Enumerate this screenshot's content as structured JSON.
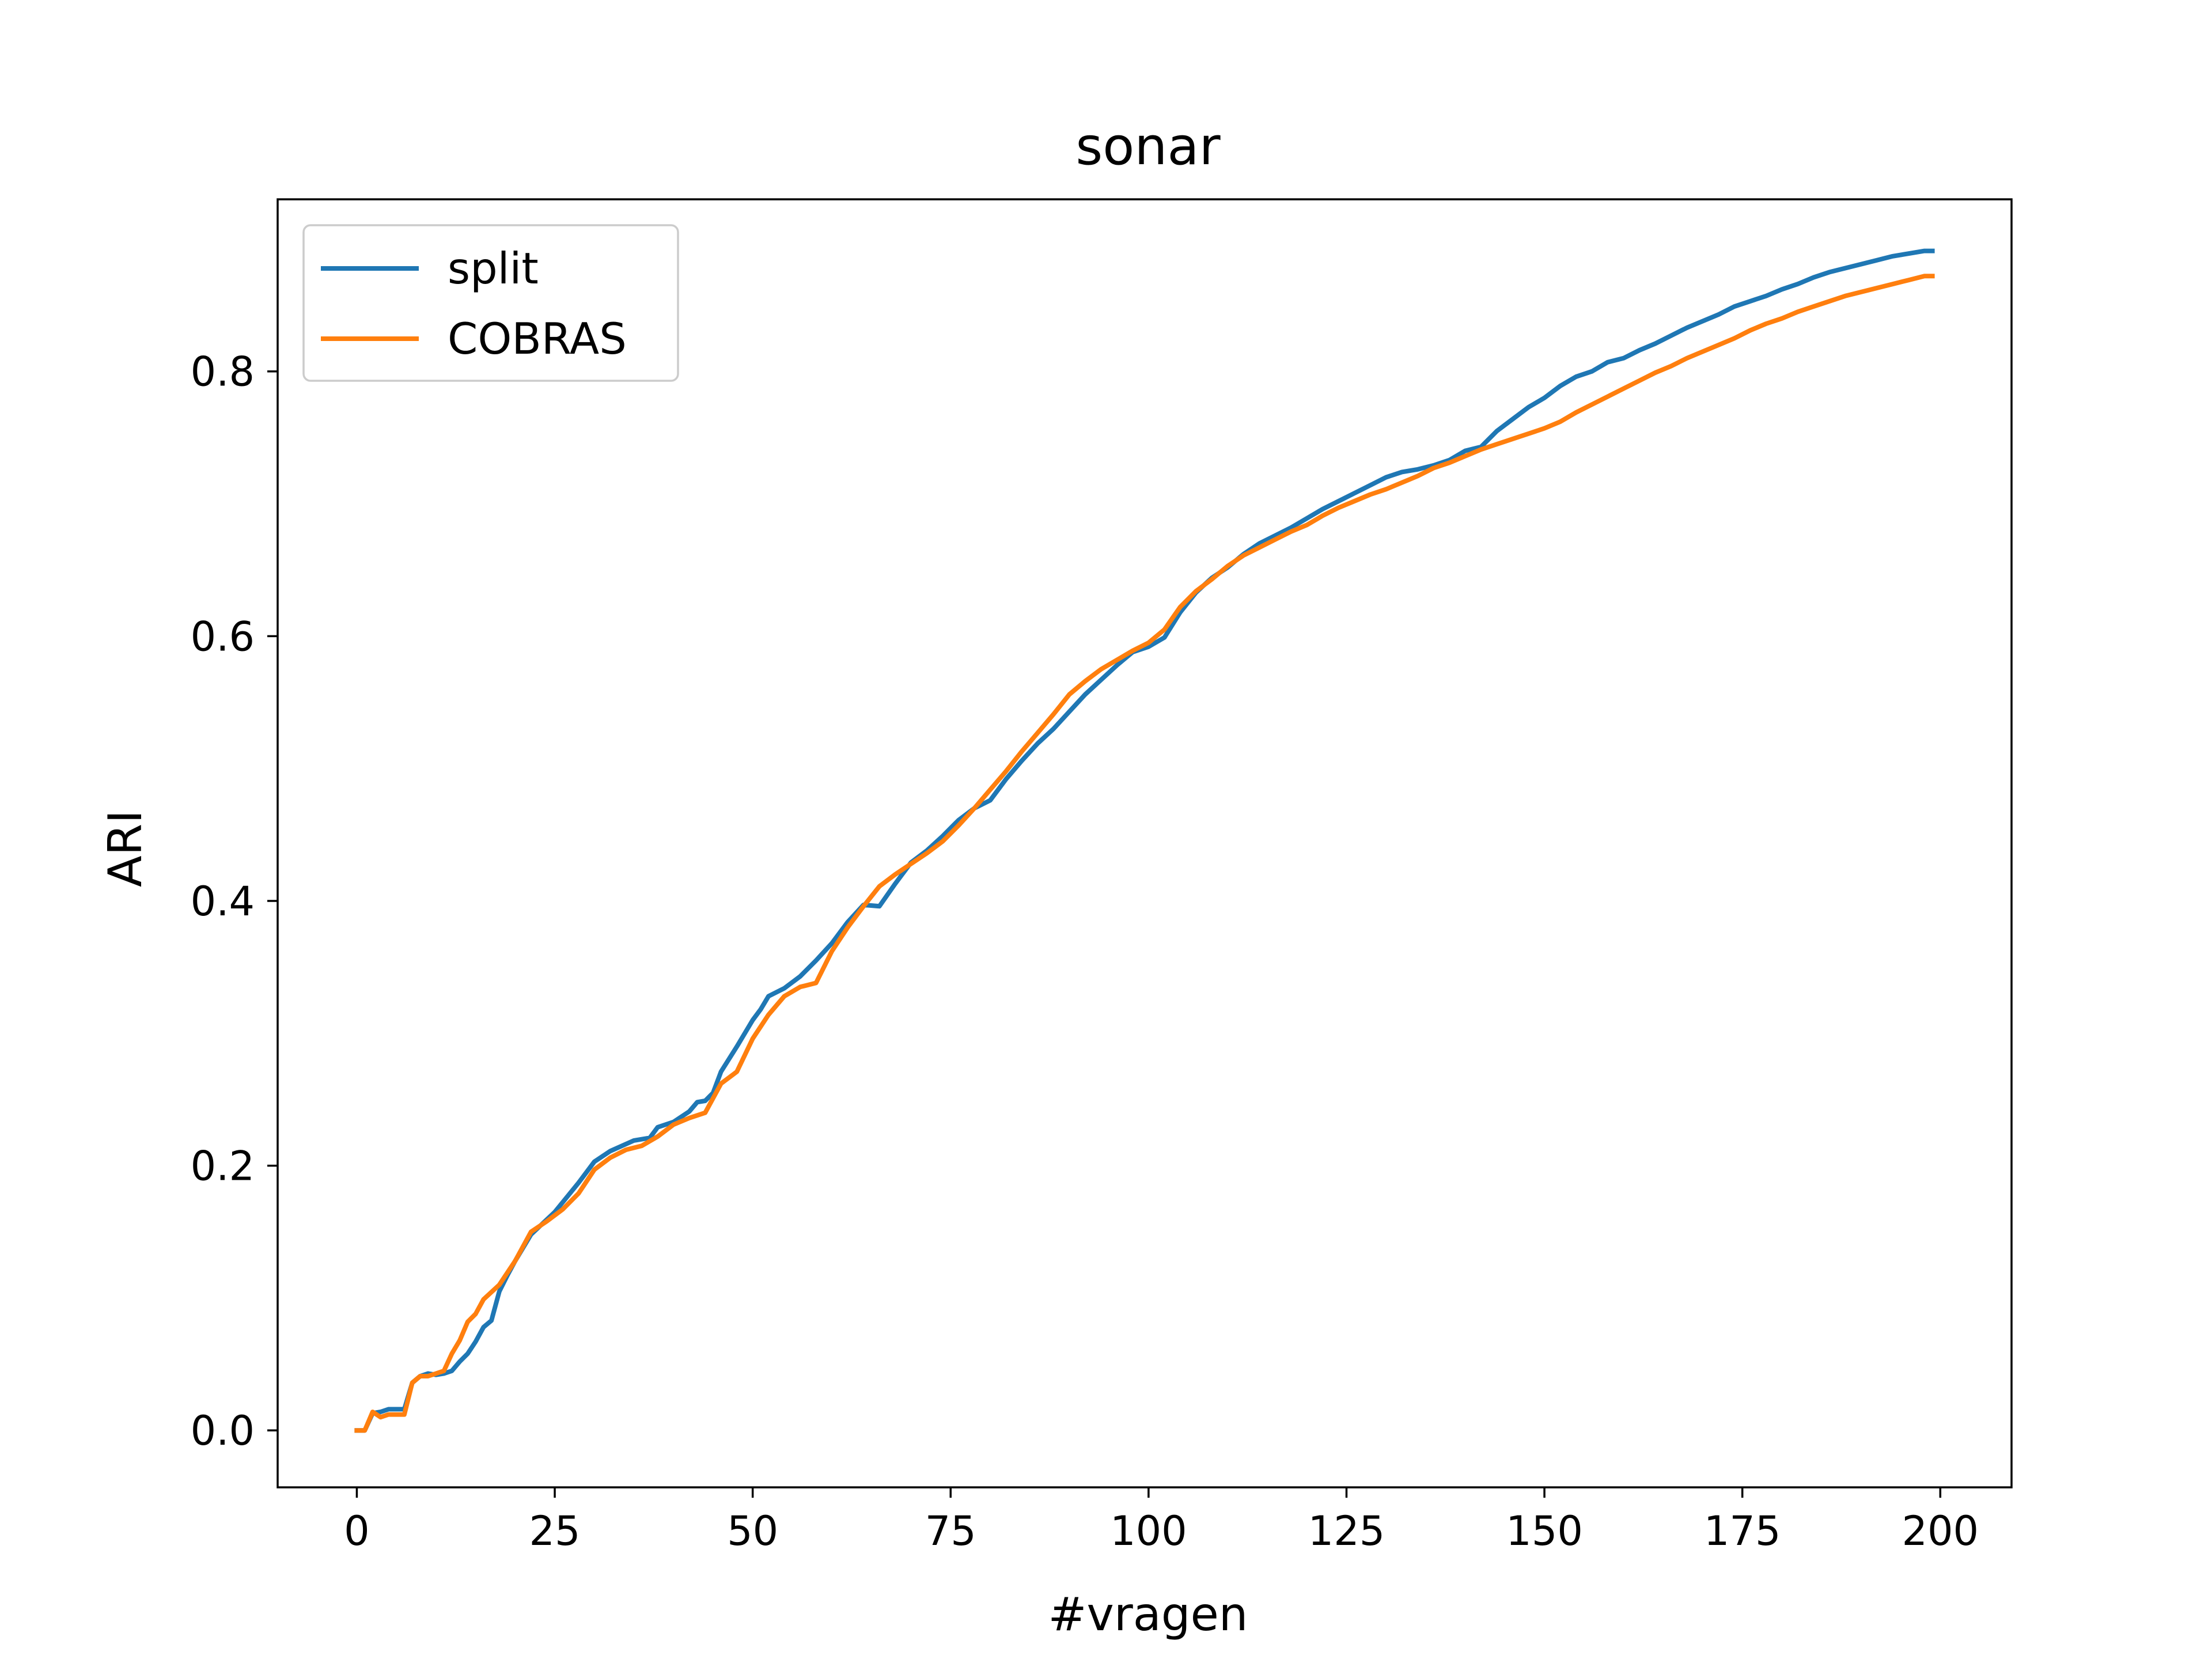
{
  "chart_data": {
    "type": "line",
    "title": "sonar",
    "xlabel": "#vragen",
    "ylabel": "ARI",
    "xlim": [
      -10,
      209
    ],
    "ylim": [
      -0.043,
      0.93
    ],
    "xticks": [
      0,
      25,
      50,
      75,
      100,
      125,
      150,
      175,
      200
    ],
    "yticks": [
      0.0,
      0.2,
      0.4,
      0.6,
      0.8
    ],
    "xtick_labels": [
      "0",
      "25",
      "50",
      "75",
      "100",
      "125",
      "150",
      "175",
      "200"
    ],
    "ytick_labels": [
      "0.0",
      "0.2",
      "0.4",
      "0.6",
      "0.8"
    ],
    "grid": false,
    "legend_position": "top-left",
    "series": [
      {
        "name": "split",
        "color": "#1f77b4",
        "points": [
          [
            0,
            0.0
          ],
          [
            1,
            0.0
          ],
          [
            2,
            0.013
          ],
          [
            3,
            0.014
          ],
          [
            4,
            0.016
          ],
          [
            5,
            0.016
          ],
          [
            6,
            0.016
          ],
          [
            7,
            0.036
          ],
          [
            8,
            0.041
          ],
          [
            9,
            0.043
          ],
          [
            10,
            0.042
          ],
          [
            11,
            0.043
          ],
          [
            12,
            0.045
          ],
          [
            13,
            0.052
          ],
          [
            14,
            0.058
          ],
          [
            15,
            0.067
          ],
          [
            16,
            0.078
          ],
          [
            17,
            0.083
          ],
          [
            18,
            0.105
          ],
          [
            19,
            0.117
          ],
          [
            20,
            0.128
          ],
          [
            21,
            0.138
          ],
          [
            22,
            0.148
          ],
          [
            25,
            0.165
          ],
          [
            28,
            0.187
          ],
          [
            30,
            0.203
          ],
          [
            32,
            0.211
          ],
          [
            35,
            0.219
          ],
          [
            37,
            0.221
          ],
          [
            38,
            0.229
          ],
          [
            40,
            0.233
          ],
          [
            42,
            0.241
          ],
          [
            43,
            0.248
          ],
          [
            44,
            0.249
          ],
          [
            45,
            0.255
          ],
          [
            46,
            0.271
          ],
          [
            48,
            0.29
          ],
          [
            50,
            0.31
          ],
          [
            51,
            0.318
          ],
          [
            52,
            0.328
          ],
          [
            54,
            0.334
          ],
          [
            56,
            0.343
          ],
          [
            58,
            0.355
          ],
          [
            60,
            0.368
          ],
          [
            62,
            0.384
          ],
          [
            64,
            0.397
          ],
          [
            66,
            0.396
          ],
          [
            68,
            0.413
          ],
          [
            70,
            0.429
          ],
          [
            72,
            0.438
          ],
          [
            74,
            0.449
          ],
          [
            76,
            0.461
          ],
          [
            78,
            0.47
          ],
          [
            80,
            0.476
          ],
          [
            82,
            0.492
          ],
          [
            84,
            0.506
          ],
          [
            86,
            0.519
          ],
          [
            88,
            0.53
          ],
          [
            90,
            0.543
          ],
          [
            92,
            0.556
          ],
          [
            94,
            0.567
          ],
          [
            96,
            0.578
          ],
          [
            98,
            0.588
          ],
          [
            100,
            0.592
          ],
          [
            102,
            0.599
          ],
          [
            104,
            0.618
          ],
          [
            106,
            0.633
          ],
          [
            108,
            0.644
          ],
          [
            110,
            0.652
          ],
          [
            112,
            0.662
          ],
          [
            114,
            0.67
          ],
          [
            116,
            0.676
          ],
          [
            118,
            0.682
          ],
          [
            120,
            0.689
          ],
          [
            122,
            0.696
          ],
          [
            124,
            0.702
          ],
          [
            126,
            0.708
          ],
          [
            128,
            0.714
          ],
          [
            130,
            0.72
          ],
          [
            132,
            0.724
          ],
          [
            134,
            0.726
          ],
          [
            136,
            0.729
          ],
          [
            138,
            0.733
          ],
          [
            140,
            0.74
          ],
          [
            142,
            0.743
          ],
          [
            144,
            0.755
          ],
          [
            146,
            0.764
          ],
          [
            148,
            0.773
          ],
          [
            150,
            0.78
          ],
          [
            152,
            0.789
          ],
          [
            154,
            0.796
          ],
          [
            156,
            0.8
          ],
          [
            158,
            0.807
          ],
          [
            160,
            0.81
          ],
          [
            162,
            0.816
          ],
          [
            164,
            0.821
          ],
          [
            166,
            0.827
          ],
          [
            168,
            0.833
          ],
          [
            170,
            0.838
          ],
          [
            172,
            0.843
          ],
          [
            174,
            0.849
          ],
          [
            176,
            0.853
          ],
          [
            178,
            0.857
          ],
          [
            180,
            0.862
          ],
          [
            182,
            0.866
          ],
          [
            184,
            0.871
          ],
          [
            186,
            0.875
          ],
          [
            188,
            0.878
          ],
          [
            190,
            0.881
          ],
          [
            192,
            0.884
          ],
          [
            194,
            0.887
          ],
          [
            196,
            0.889
          ],
          [
            198,
            0.891
          ],
          [
            199,
            0.891
          ]
        ]
      },
      {
        "name": "COBRAS",
        "color": "#ff7f0e",
        "points": [
          [
            0,
            0.0
          ],
          [
            1,
            0.0
          ],
          [
            2,
            0.014
          ],
          [
            3,
            0.01
          ],
          [
            4,
            0.012
          ],
          [
            5,
            0.012
          ],
          [
            6,
            0.012
          ],
          [
            7,
            0.036
          ],
          [
            8,
            0.041
          ],
          [
            9,
            0.041
          ],
          [
            10,
            0.043
          ],
          [
            11,
            0.045
          ],
          [
            12,
            0.058
          ],
          [
            13,
            0.068
          ],
          [
            14,
            0.082
          ],
          [
            15,
            0.088
          ],
          [
            16,
            0.099
          ],
          [
            18,
            0.11
          ],
          [
            20,
            0.128
          ],
          [
            22,
            0.15
          ],
          [
            24,
            0.158
          ],
          [
            26,
            0.167
          ],
          [
            28,
            0.179
          ],
          [
            30,
            0.197
          ],
          [
            32,
            0.206
          ],
          [
            34,
            0.212
          ],
          [
            36,
            0.215
          ],
          [
            38,
            0.222
          ],
          [
            40,
            0.231
          ],
          [
            42,
            0.236
          ],
          [
            44,
            0.24
          ],
          [
            46,
            0.262
          ],
          [
            48,
            0.271
          ],
          [
            50,
            0.296
          ],
          [
            52,
            0.314
          ],
          [
            54,
            0.328
          ],
          [
            56,
            0.335
          ],
          [
            58,
            0.338
          ],
          [
            60,
            0.362
          ],
          [
            62,
            0.38
          ],
          [
            64,
            0.396
          ],
          [
            66,
            0.411
          ],
          [
            68,
            0.42
          ],
          [
            70,
            0.428
          ],
          [
            72,
            0.436
          ],
          [
            74,
            0.445
          ],
          [
            76,
            0.457
          ],
          [
            78,
            0.47
          ],
          [
            80,
            0.484
          ],
          [
            82,
            0.498
          ],
          [
            84,
            0.513
          ],
          [
            86,
            0.527
          ],
          [
            88,
            0.541
          ],
          [
            90,
            0.556
          ],
          [
            92,
            0.566
          ],
          [
            94,
            0.575
          ],
          [
            96,
            0.582
          ],
          [
            98,
            0.589
          ],
          [
            100,
            0.595
          ],
          [
            102,
            0.605
          ],
          [
            104,
            0.622
          ],
          [
            106,
            0.634
          ],
          [
            108,
            0.643
          ],
          [
            110,
            0.653
          ],
          [
            112,
            0.661
          ],
          [
            114,
            0.667
          ],
          [
            116,
            0.673
          ],
          [
            118,
            0.679
          ],
          [
            120,
            0.684
          ],
          [
            122,
            0.691
          ],
          [
            124,
            0.697
          ],
          [
            126,
            0.702
          ],
          [
            128,
            0.707
          ],
          [
            130,
            0.711
          ],
          [
            132,
            0.716
          ],
          [
            134,
            0.721
          ],
          [
            136,
            0.727
          ],
          [
            138,
            0.731
          ],
          [
            140,
            0.736
          ],
          [
            142,
            0.741
          ],
          [
            144,
            0.745
          ],
          [
            146,
            0.749
          ],
          [
            148,
            0.753
          ],
          [
            150,
            0.757
          ],
          [
            152,
            0.762
          ],
          [
            154,
            0.769
          ],
          [
            156,
            0.775
          ],
          [
            158,
            0.781
          ],
          [
            160,
            0.787
          ],
          [
            162,
            0.793
          ],
          [
            164,
            0.799
          ],
          [
            166,
            0.804
          ],
          [
            168,
            0.81
          ],
          [
            170,
            0.815
          ],
          [
            172,
            0.82
          ],
          [
            174,
            0.825
          ],
          [
            176,
            0.831
          ],
          [
            178,
            0.836
          ],
          [
            180,
            0.84
          ],
          [
            182,
            0.845
          ],
          [
            184,
            0.849
          ],
          [
            186,
            0.853
          ],
          [
            188,
            0.857
          ],
          [
            190,
            0.86
          ],
          [
            192,
            0.863
          ],
          [
            194,
            0.866
          ],
          [
            196,
            0.869
          ],
          [
            198,
            0.872
          ],
          [
            199,
            0.872
          ]
        ]
      }
    ]
  }
}
